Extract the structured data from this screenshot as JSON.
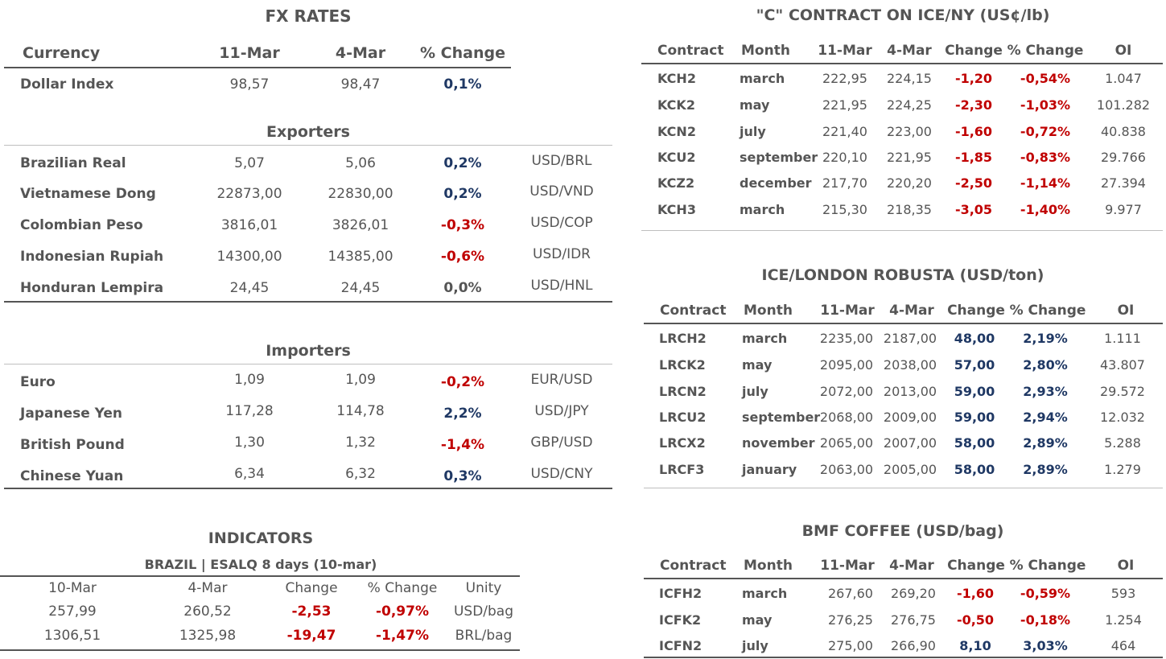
{
  "fx": {
    "title": "FX RATES",
    "headers": [
      "Currency",
      "11-Mar",
      "4-Mar",
      "% Change"
    ],
    "dollar_index": {
      "name": "Dollar Index",
      "v1": "98,57",
      "v2": "98,47",
      "pct": "0,1%"
    },
    "exporters_title": "Exporters",
    "exporters": [
      {
        "name": "Brazilian Real",
        "v1": "5,07",
        "v2": "5,06",
        "pct": "0,2%",
        "pair": "USD/BRL"
      },
      {
        "name": "Vietnamese Dong",
        "v1": "22873,00",
        "v2": "22830,00",
        "pct": "0,2%",
        "pair": "USD/VND"
      },
      {
        "name": "Colombian Peso",
        "v1": "3816,01",
        "v2": "3826,01",
        "pct": "-0,3%",
        "pair": "USD/COP"
      },
      {
        "name": "Indonesian Rupiah",
        "v1": "14300,00",
        "v2": "14385,00",
        "pct": "-0,6%",
        "pair": "USD/IDR"
      },
      {
        "name": "Honduran Lempira",
        "v1": "24,45",
        "v2": "24,45",
        "pct": "0,0%",
        "pair": "USD/HNL"
      }
    ],
    "importers_title": "Importers",
    "importers": [
      {
        "name": "Euro",
        "v1": "1,09",
        "v2": "1,09",
        "pct": "-0,2%",
        "pair": "EUR/USD"
      },
      {
        "name": "Japanese Yen",
        "v1": "117,28",
        "v2": "114,78",
        "pct": "2,2%",
        "pair": "USD/JPY"
      },
      {
        "name": "British Pound",
        "v1": "1,30",
        "v2": "1,32",
        "pct": "-1,4%",
        "pair": "GBP/USD"
      },
      {
        "name": "Chinese Yuan",
        "v1": "6,34",
        "v2": "6,32",
        "pct": "0,3%",
        "pair": "USD/CNY"
      }
    ]
  },
  "indicators": {
    "title": "INDICATORS",
    "subtitle": "BRAZIL | ESALQ 8 days (10-mar)",
    "headers": [
      "10-Mar",
      "4-Mar",
      "Change",
      "% Change",
      "Unity"
    ],
    "rows": [
      {
        "v1": "257,99",
        "v2": "260,52",
        "chg": "-2,53",
        "pct": "-0,97%",
        "unit": "USD/bag"
      },
      {
        "v1": "1306,51",
        "v2": "1325,98",
        "chg": "-19,47",
        "pct": "-1,47%",
        "unit": "BRL/bag"
      }
    ]
  },
  "contract_c": {
    "title": "\"C\" CONTRACT ON ICE/NY (US¢/lb)",
    "headers": [
      "Contract",
      "Month",
      "11-Mar",
      "4-Mar",
      "Change",
      "% Change",
      "OI"
    ],
    "rows": [
      {
        "c": "KCH2",
        "m": "march",
        "v1": "222,95",
        "v2": "224,15",
        "chg": "-1,20",
        "pct": "-0,54%",
        "oi": "1.047"
      },
      {
        "c": "KCK2",
        "m": "may",
        "v1": "221,95",
        "v2": "224,25",
        "chg": "-2,30",
        "pct": "-1,03%",
        "oi": "101.282"
      },
      {
        "c": "KCN2",
        "m": "july",
        "v1": "221,40",
        "v2": "223,00",
        "chg": "-1,60",
        "pct": "-0,72%",
        "oi": "40.838"
      },
      {
        "c": "KCU2",
        "m": "september",
        "v1": "220,10",
        "v2": "221,95",
        "chg": "-1,85",
        "pct": "-0,83%",
        "oi": "29.766"
      },
      {
        "c": "KCZ2",
        "m": "december",
        "v1": "217,70",
        "v2": "220,20",
        "chg": "-2,50",
        "pct": "-1,14%",
        "oi": "27.394"
      },
      {
        "c": "KCH3",
        "m": "march",
        "v1": "215,30",
        "v2": "218,35",
        "chg": "-3,05",
        "pct": "-1,40%",
        "oi": "9.977"
      }
    ]
  },
  "robusta": {
    "title": "ICE/LONDON ROBUSTA (USD/ton)",
    "headers": [
      "Contract",
      "Month",
      "11-Mar",
      "4-Mar",
      "Change",
      "% Change",
      "OI"
    ],
    "rows": [
      {
        "c": "LRCH2",
        "m": "march",
        "v1": "2235,00",
        "v2": "2187,00",
        "chg": "48,00",
        "pct": "2,19%",
        "oi": "1.111"
      },
      {
        "c": "LRCK2",
        "m": "may",
        "v1": "2095,00",
        "v2": "2038,00",
        "chg": "57,00",
        "pct": "2,80%",
        "oi": "43.807"
      },
      {
        "c": "LRCN2",
        "m": "july",
        "v1": "2072,00",
        "v2": "2013,00",
        "chg": "59,00",
        "pct": "2,93%",
        "oi": "29.572"
      },
      {
        "c": "LRCU2",
        "m": "september",
        "v1": "2068,00",
        "v2": "2009,00",
        "chg": "59,00",
        "pct": "2,94%",
        "oi": "12.032"
      },
      {
        "c": "LRCX2",
        "m": "november",
        "v1": "2065,00",
        "v2": "2007,00",
        "chg": "58,00",
        "pct": "2,89%",
        "oi": "5.288"
      },
      {
        "c": "LRCF3",
        "m": "january",
        "v1": "2063,00",
        "v2": "2005,00",
        "chg": "58,00",
        "pct": "2,89%",
        "oi": "1.279"
      }
    ]
  },
  "bmf": {
    "title": "BMF COFFEE (USD/bag)",
    "headers": [
      "Contract",
      "Month",
      "11-Mar",
      "4-Mar",
      "Change",
      "% Change",
      "OI"
    ],
    "rows": [
      {
        "c": "ICFH2",
        "m": "march",
        "v1": "267,60",
        "v2": "269,20",
        "chg": "-1,60",
        "pct": "-0,59%",
        "oi": "593"
      },
      {
        "c": "ICFK2",
        "m": "may",
        "v1": "276,25",
        "v2": "276,75",
        "chg": "-0,50",
        "pct": "-0,18%",
        "oi": "1.254"
      },
      {
        "c": "ICFN2",
        "m": "july",
        "v1": "275,00",
        "v2": "266,90",
        "chg": "8,10",
        "pct": "3,03%",
        "oi": "464"
      }
    ]
  }
}
